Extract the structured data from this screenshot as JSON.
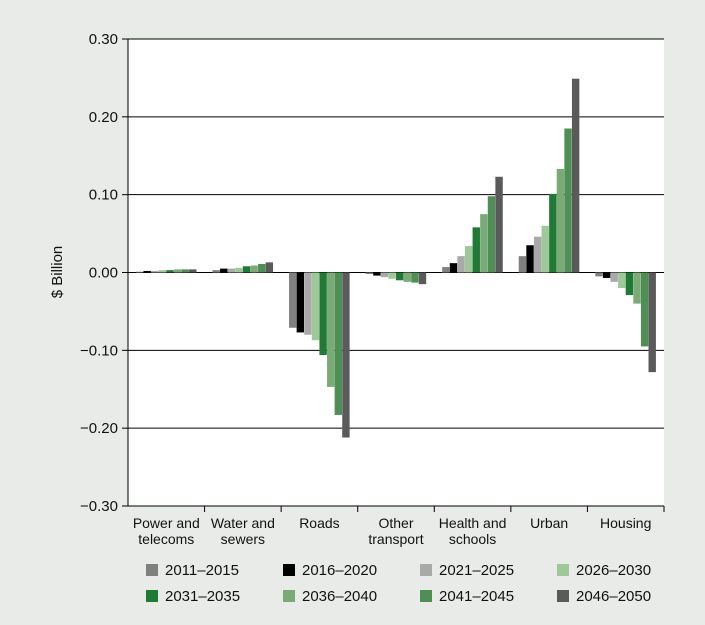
{
  "chart_data": {
    "type": "bar",
    "title": "",
    "ylabel": "$ Billion",
    "xlabel": "",
    "ylim": [
      -0.3,
      0.3
    ],
    "yticks": [
      "0.30",
      "0.20",
      "0.10",
      "0.00",
      "−0.10",
      "−0.20",
      "−0.30"
    ],
    "ytick_values": [
      0.3,
      0.2,
      0.1,
      0.0,
      -0.1,
      -0.2,
      -0.3
    ],
    "grid": true,
    "legend_position": "bottom",
    "categories": [
      [
        "Power and",
        "telecoms"
      ],
      [
        "Water and",
        "sewers"
      ],
      [
        "Roads"
      ],
      [
        "Other",
        "transport"
      ],
      [
        "Health and",
        "schools"
      ],
      [
        "Urban"
      ],
      [
        "Housing"
      ]
    ],
    "series": [
      {
        "name": "2011–2015",
        "color": "#808080",
        "values": [
          0.001,
          0.003,
          -0.071,
          -0.002,
          0.007,
          0.021,
          -0.005
        ]
      },
      {
        "name": "2016–2020",
        "color": "#000000",
        "values": [
          0.002,
          0.005,
          -0.077,
          -0.004,
          0.012,
          0.035,
          -0.007
        ]
      },
      {
        "name": "2021–2025",
        "color": "#a9a9a9",
        "values": [
          0.002,
          0.005,
          -0.08,
          -0.006,
          0.021,
          0.046,
          -0.012
        ]
      },
      {
        "name": "2026–2030",
        "color": "#9ec89a",
        "values": [
          0.003,
          0.006,
          -0.087,
          -0.008,
          0.034,
          0.06,
          -0.02
        ]
      },
      {
        "name": "2031–2035",
        "color": "#1e7a34",
        "values": [
          0.003,
          0.008,
          -0.106,
          -0.01,
          0.058,
          0.101,
          -0.029
        ]
      },
      {
        "name": "2036–2040",
        "color": "#7aab77",
        "values": [
          0.004,
          0.009,
          -0.147,
          -0.012,
          0.075,
          0.133,
          -0.04
        ]
      },
      {
        "name": "2041–2045",
        "color": "#4f8f56",
        "values": [
          0.004,
          0.011,
          -0.183,
          -0.013,
          0.098,
          0.185,
          -0.095
        ]
      },
      {
        "name": "2046–2050",
        "color": "#5a5a5a",
        "values": [
          0.004,
          0.013,
          -0.212,
          -0.015,
          0.123,
          0.249,
          -0.128
        ]
      }
    ]
  }
}
